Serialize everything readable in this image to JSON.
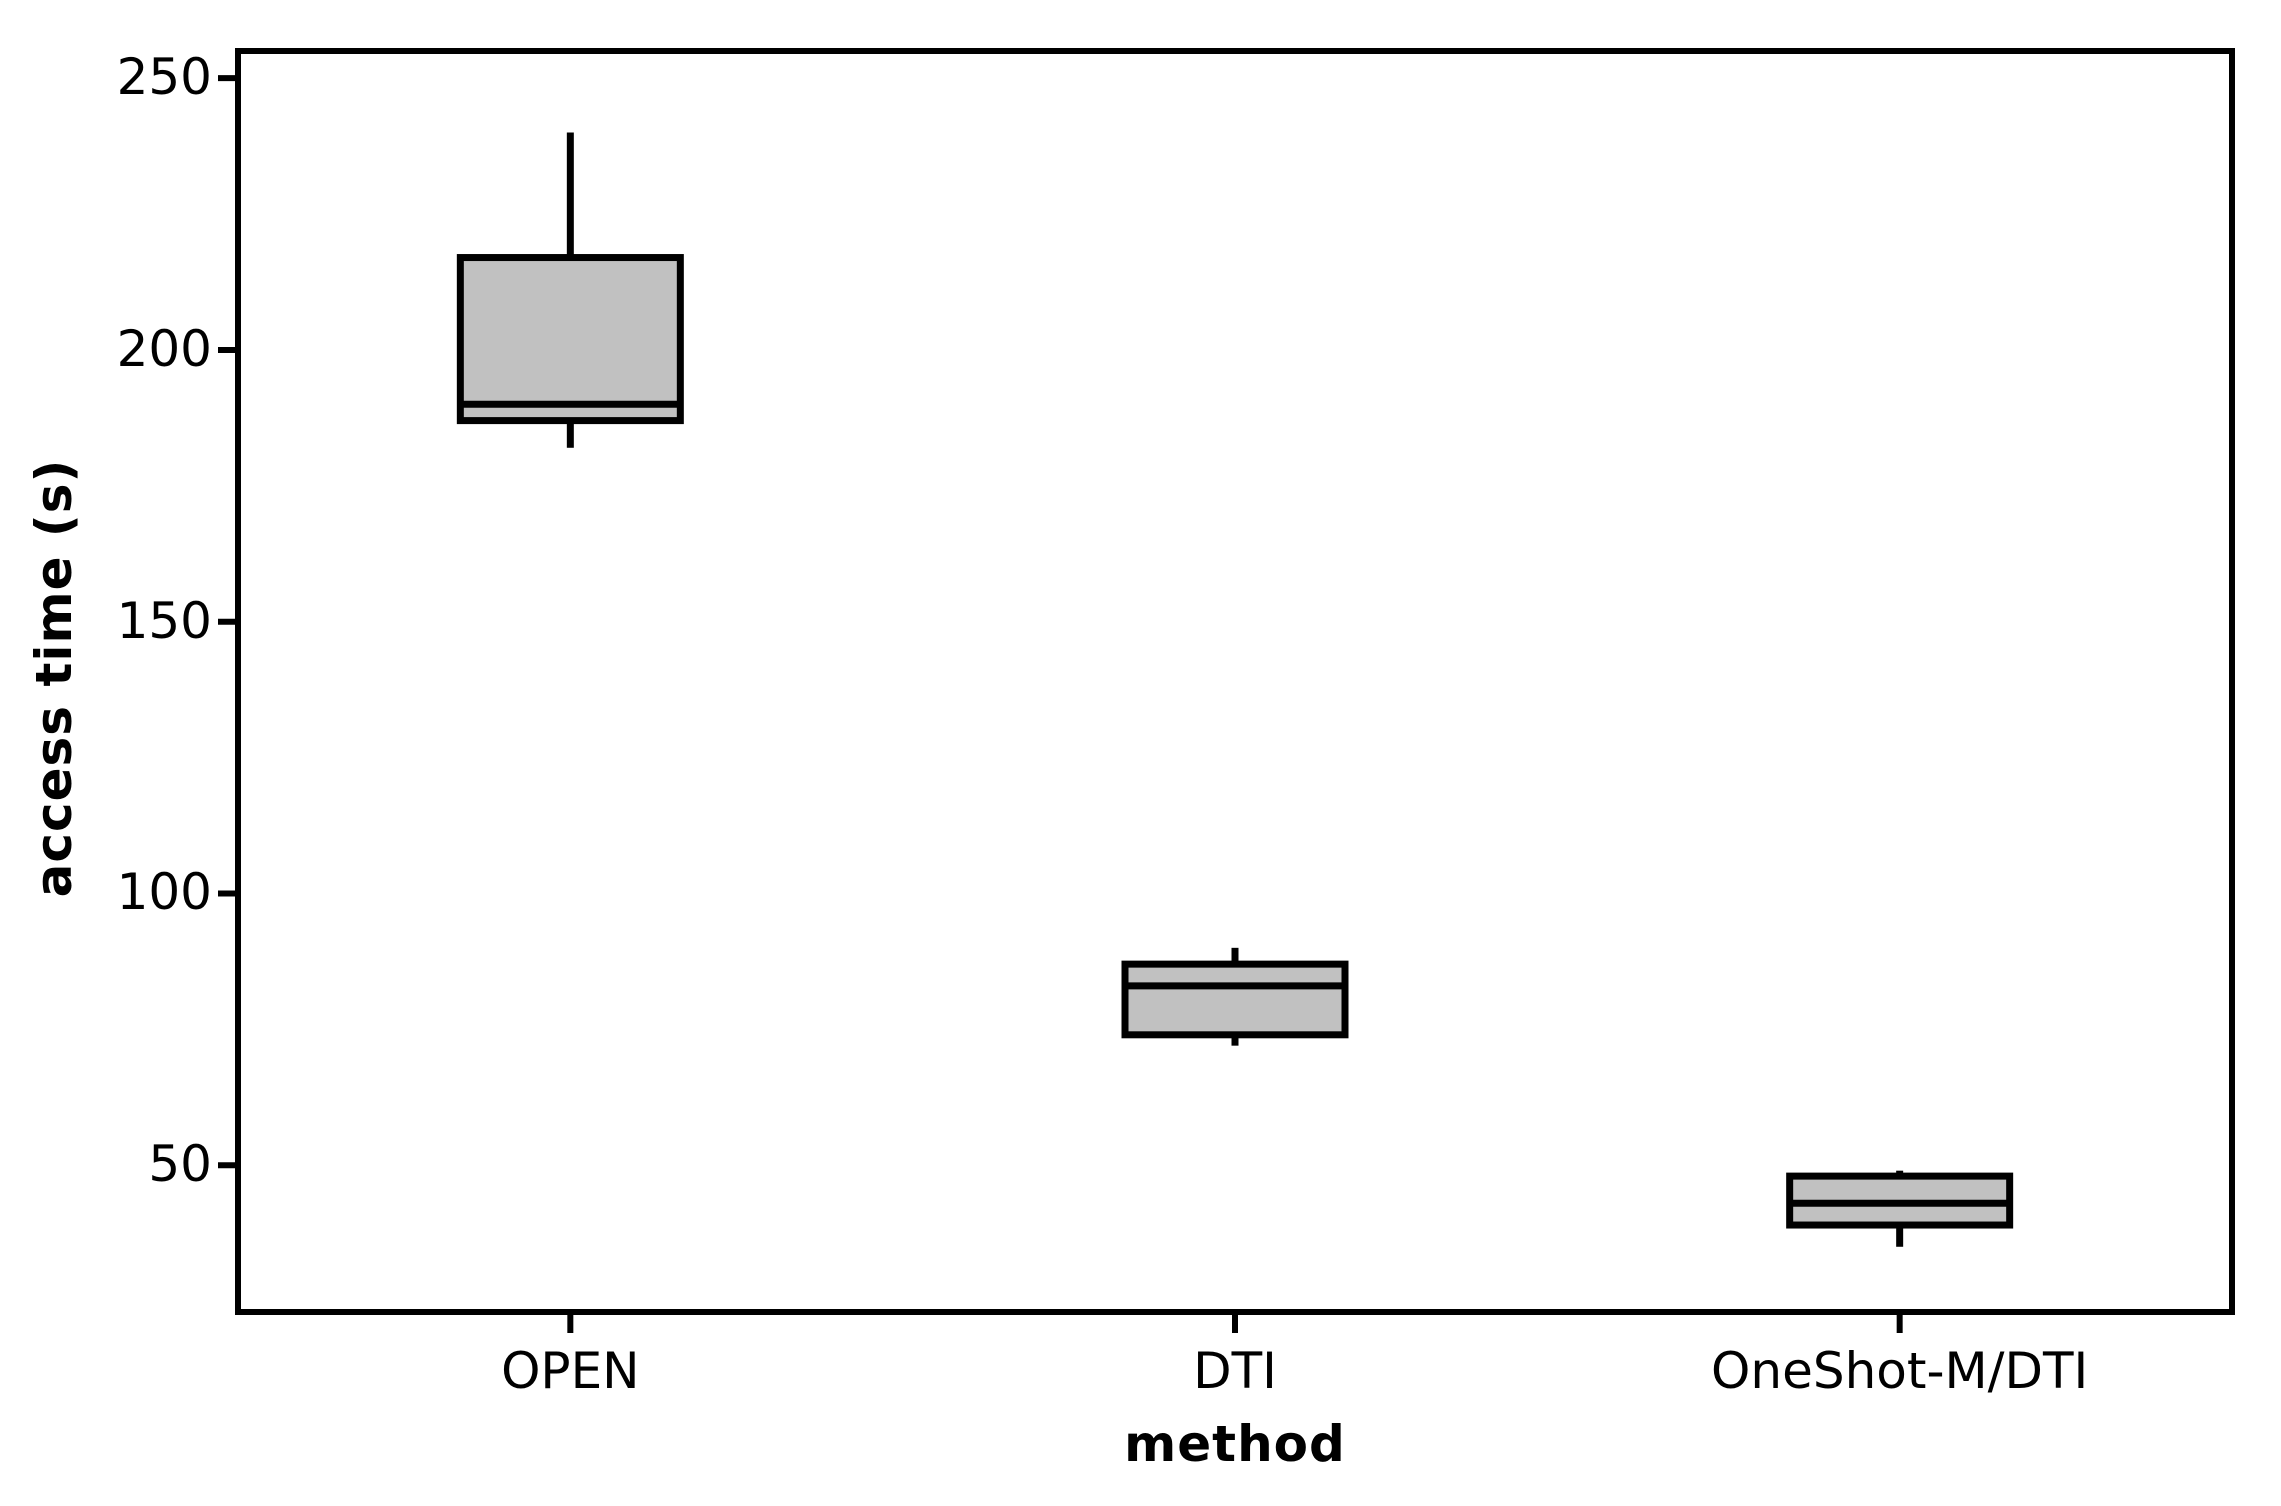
{
  "chart_data": {
    "type": "boxplot",
    "title": "",
    "xlabel": "method",
    "ylabel": "access time (s)",
    "categories": [
      "OPEN",
      "DTI",
      "OneShot-M/DTI"
    ],
    "y_ticks": [
      250,
      200,
      150,
      100,
      50
    ],
    "ylim": [
      23,
      255
    ],
    "grid": false,
    "legend": "none",
    "box_fill": "#c1c1c1",
    "stroke_color": "#000000",
    "background_color": "#ffffff",
    "series": [
      {
        "name": "OPEN",
        "whisker_low": 182,
        "q1": 187,
        "median": 190,
        "q3": 217,
        "whisker_high": 240
      },
      {
        "name": "DTI",
        "whisker_low": 72,
        "q1": 74,
        "median": 83,
        "q3": 87,
        "whisker_high": 90
      },
      {
        "name": "OneShot-M/DTI",
        "whisker_low": 35,
        "q1": 39,
        "median": 43,
        "q3": 48,
        "whisker_high": 49
      }
    ]
  }
}
